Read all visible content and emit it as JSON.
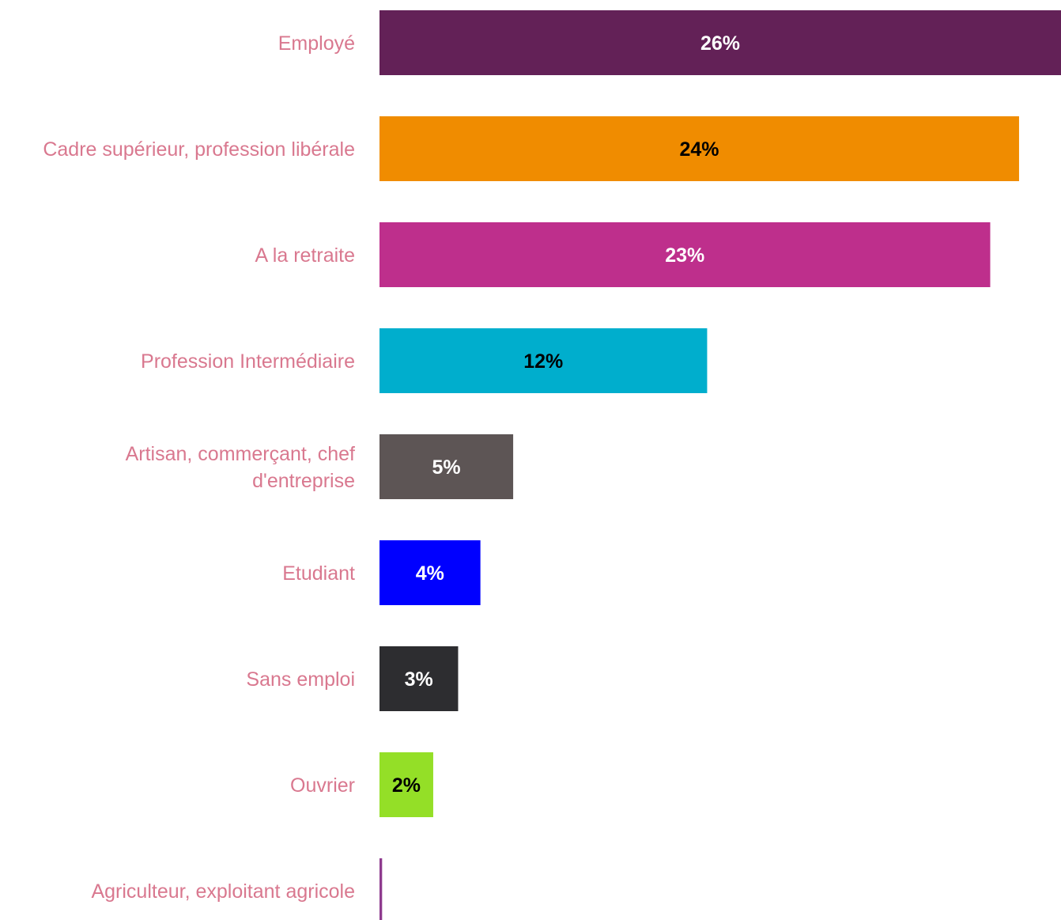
{
  "chart_data": {
    "type": "bar",
    "orientation": "horizontal",
    "title": "",
    "xlabel": "",
    "ylabel": "",
    "grid": false,
    "legend": "none",
    "xlim": [
      0,
      26
    ],
    "categories": [
      "Employé",
      "Cadre supérieur, profession libérale",
      "A la retraite",
      "Profession Intermédiaire",
      "Artisan, commerçant, chef d'entreprise",
      "Etudiant",
      "Sans emploi",
      "Ouvrier",
      "Agriculteur, exploitant agricole"
    ],
    "category_lines": [
      [
        "Employé"
      ],
      [
        "Cadre supérieur, profession libérale"
      ],
      [
        "A la retraite"
      ],
      [
        "Profession Intermédiaire"
      ],
      [
        "Artisan, commerçant, chef",
        "d'entreprise"
      ],
      [
        "Etudiant"
      ],
      [
        "Sans emploi"
      ],
      [
        "Ouvrier"
      ],
      [
        "Agriculteur, exploitant agricole"
      ]
    ],
    "values": [
      26,
      24.4,
      23.3,
      12.5,
      5.1,
      3.85,
      3,
      2.05,
      0.1
    ],
    "value_labels": [
      "26%",
      "24%",
      "23%",
      "12%",
      "5%",
      "4%",
      "3%",
      "2%",
      ""
    ],
    "colors": [
      "#632157",
      "#f08c00",
      "#be2f8c",
      "#00aecd",
      "#5d5555",
      "#0000ff",
      "#2d2d30",
      "#94df27",
      "#8e3b8e"
    ],
    "label_colors": [
      "#ffffff",
      "#000000",
      "#ffffff",
      "#000000",
      "#ffffff",
      "#ffffff",
      "#ffffff",
      "#000000",
      "#ffffff"
    ],
    "category_label_color": "#d9788f"
  }
}
